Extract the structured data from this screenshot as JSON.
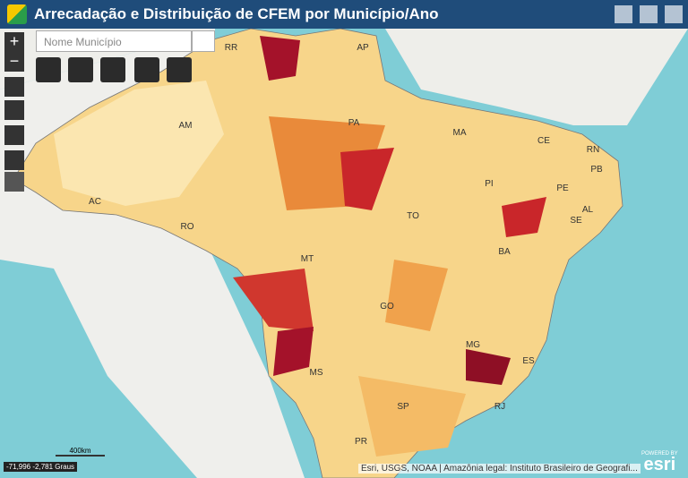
{
  "header": {
    "title": "Arrecadação e Distribuição de CFEM por Município/Ano"
  },
  "search": {
    "placeholder": "Nome Município"
  },
  "zoom": {
    "in": "+",
    "out": "−"
  },
  "map": {
    "state_labels": [
      "RR",
      "AP",
      "AM",
      "PA",
      "MA",
      "CE",
      "RN",
      "PB",
      "PE",
      "PI",
      "AL",
      "SE",
      "AC",
      "RO",
      "TO",
      "BA",
      "MT",
      "GO",
      "MG",
      "MS",
      "ES",
      "RJ",
      "SP",
      "PR"
    ],
    "scale": "400km",
    "coordinates": "-71,996 -2,781 Graus",
    "attribution": "Esri, USGS, NOAA | Amazônia legal: Instituto Brasileiro de Geografi...",
    "logo": {
      "powered": "POWERED BY",
      "brand": "esri"
    }
  }
}
